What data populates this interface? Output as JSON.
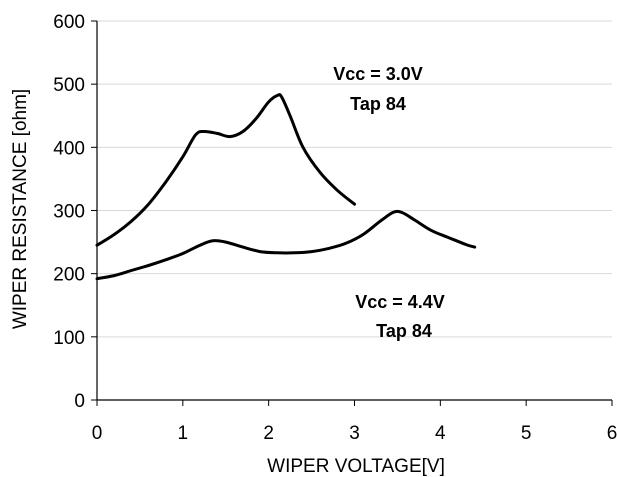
{
  "chart_data": {
    "type": "line",
    "xlabel": "WIPER VOLTAGE[V]",
    "ylabel": "WIPER RESISTANCE [ohm]",
    "xlim": [
      0,
      6
    ],
    "ylim": [
      0,
      600
    ],
    "x_ticks": [
      "0",
      "1",
      "2",
      "3",
      "4",
      "5",
      "6"
    ],
    "y_ticks": [
      "0",
      "100",
      "200",
      "300",
      "400",
      "500",
      "600"
    ],
    "grid": "horizontal",
    "legend": "none",
    "series_color": "#000000",
    "series": [
      {
        "x": [
          0.0,
          0.2,
          0.4,
          0.6,
          0.8,
          1.0,
          1.15,
          1.25,
          1.4,
          1.55,
          1.7,
          1.85,
          2.0,
          2.1,
          2.15,
          2.25,
          2.4,
          2.6,
          2.8,
          3.0
        ],
        "y": [
          245,
          262,
          283,
          310,
          345,
          385,
          420,
          425,
          422,
          417,
          425,
          445,
          472,
          482,
          480,
          450,
          400,
          360,
          332,
          310
        ]
      },
      {
        "x": [
          0.0,
          0.2,
          0.4,
          0.6,
          0.8,
          1.0,
          1.2,
          1.35,
          1.5,
          1.7,
          1.9,
          2.1,
          2.3,
          2.5,
          2.7,
          2.9,
          3.1,
          3.3,
          3.45,
          3.55,
          3.7,
          3.9,
          4.1,
          4.3,
          4.4
        ],
        "y": [
          192,
          197,
          205,
          213,
          222,
          232,
          245,
          252,
          250,
          242,
          235,
          233,
          233,
          235,
          240,
          248,
          262,
          283,
          297,
          297,
          285,
          268,
          257,
          246,
          242
        ]
      }
    ],
    "annotations": [
      {
        "line1": "Vcc = 3.0V",
        "line2": "Tap 84"
      },
      {
        "line1": "Vcc = 4.4V",
        "line2": "Tap 84"
      }
    ]
  }
}
